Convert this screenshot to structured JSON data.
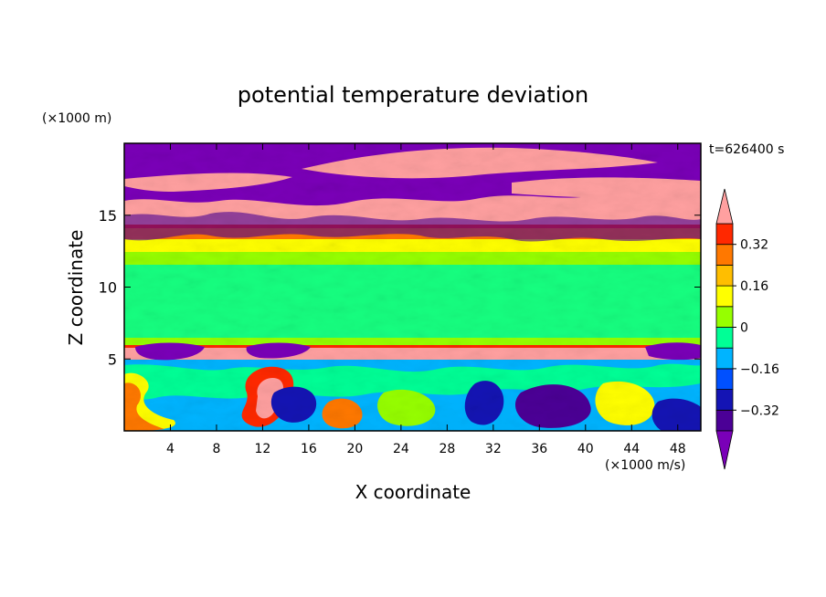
{
  "chart_data": {
    "type": "heatmap",
    "title": "potential temperature deviation",
    "xlabel": "X coordinate",
    "ylabel": "Z coordinate",
    "x_unit": "(×1000 m/s)",
    "y_unit": "(×1000 m)",
    "time_label": "t=626400 s",
    "xlim": [
      0,
      50
    ],
    "ylim": [
      0,
      20
    ],
    "x_ticks": [
      4,
      8,
      12,
      16,
      20,
      24,
      28,
      32,
      36,
      40,
      44,
      48
    ],
    "y_ticks": [
      5,
      10,
      15
    ],
    "colorbar": {
      "levels": [
        -0.48,
        -0.4,
        -0.32,
        -0.24,
        -0.16,
        -0.08,
        0,
        0.08,
        0.16,
        0.24,
        0.32,
        0.4,
        0.48
      ],
      "tick_values": [
        0.32,
        0.16,
        0,
        -0.16,
        -0.32
      ],
      "tick_labels": [
        "0.32",
        "0.16",
        "0",
        "−0.16",
        "−0.32"
      ],
      "colors": [
        "#7a00b8",
        "#4b0096",
        "#1414b4",
        "#0050ff",
        "#00b4ff",
        "#00ff96",
        "#96ff00",
        "#ffff00",
        "#ffbe00",
        "#ff7800",
        "#ff2800",
        "#ffa0a0"
      ],
      "extend": "both"
    }
  }
}
